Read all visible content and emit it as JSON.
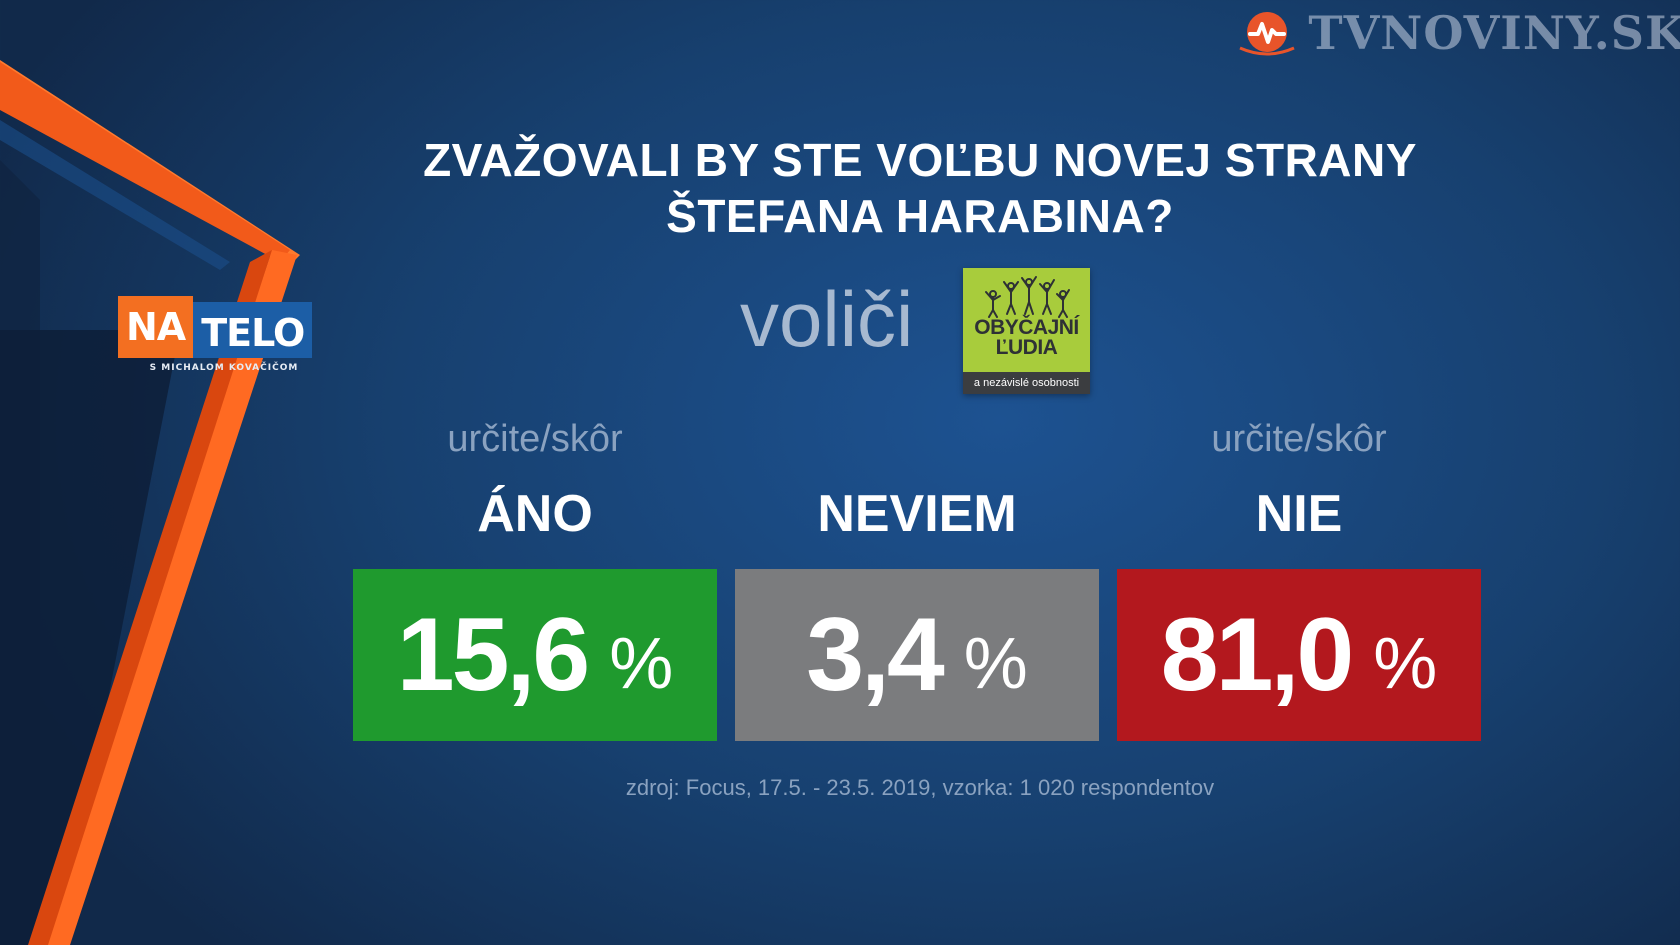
{
  "channel": {
    "name": "TVNOVINY.SK",
    "icon": "tvnoviny-logo-icon"
  },
  "show": {
    "part1": "NA",
    "part2": "TELO",
    "subtitle": "S MICHALOM KOVAČIČOM"
  },
  "question": {
    "line1": "ZVAŽOVALI BY STE VOĽBU NOVEJ STRANY",
    "line2": "ŠTEFANA HARABINA?"
  },
  "segment": {
    "label": "voliči"
  },
  "party": {
    "name_line1": "OBYČAJNÍ",
    "name_line2": "ĽUDIA",
    "tagline": "a nezávislé osobnosti"
  },
  "results": [
    {
      "qualifier": "určite/skôr",
      "label": "ÁNO",
      "value": "15,6",
      "unit": "%",
      "color": "#1f9a2e"
    },
    {
      "qualifier": "",
      "label": "NEVIEM",
      "value": "3,4",
      "unit": "%",
      "color": "#7b7c7e"
    },
    {
      "qualifier": "určite/skôr",
      "label": "NIE",
      "value": "81,0",
      "unit": "%",
      "color": "#b3181e"
    }
  ],
  "source": "zdroj: Focus, 17.5. - 23.5. 2019, vzorka: 1 020 respondentov"
}
